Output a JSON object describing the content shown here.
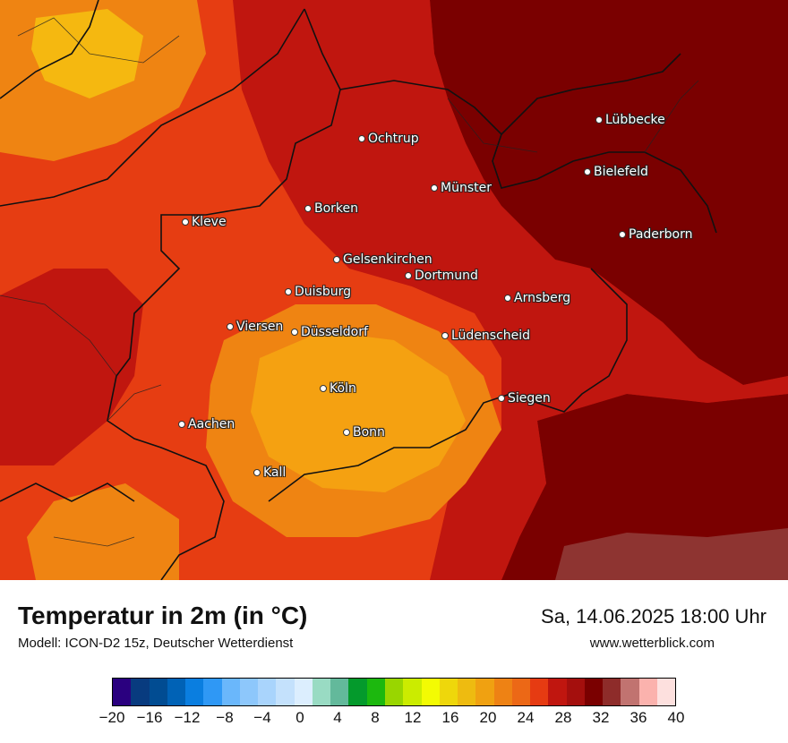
{
  "map": {
    "cities": [
      {
        "name": "Ochtrup"
      },
      {
        "name": "Lübbecke"
      },
      {
        "name": "Bielefeld"
      },
      {
        "name": "Münster"
      },
      {
        "name": "Borken"
      },
      {
        "name": "Kleve"
      },
      {
        "name": "Paderborn"
      },
      {
        "name": "Gelsenkirchen"
      },
      {
        "name": "Dortmund"
      },
      {
        "name": "Duisburg"
      },
      {
        "name": "Arnsberg"
      },
      {
        "name": "Viersen"
      },
      {
        "name": "Düsseldorf"
      },
      {
        "name": "Lüdenscheid"
      },
      {
        "name": "Köln"
      },
      {
        "name": "Siegen"
      },
      {
        "name": "Aachen"
      },
      {
        "name": "Bonn"
      },
      {
        "name": "Kall"
      }
    ]
  },
  "footer": {
    "title": "Temperatur in 2m (in °C)",
    "subtitle": "Modell: ICON-D2 15z, Deutscher Wetterdienst",
    "datetime": "Sa, 14.06.2025 18:00 Uhr",
    "website": "www.wetterblick.com"
  },
  "legend": {
    "ticks": [
      "−20",
      "−16",
      "−12",
      "−8",
      "−4",
      "0",
      "4",
      "8",
      "12",
      "16",
      "20",
      "24",
      "28",
      "32",
      "36",
      "40"
    ],
    "colors": [
      "#2a007f",
      "#083b7f",
      "#014c92",
      "#0062b6",
      "#0a7ee0",
      "#2f98f5",
      "#6ab7fb",
      "#8dc7fb",
      "#a9d4fc",
      "#c4e1fc",
      "#dceefe",
      "#99dbc3",
      "#63b99b",
      "#049a2c",
      "#1cb80e",
      "#99d600",
      "#cbec00",
      "#f3fb03",
      "#eed70b",
      "#eebb10",
      "#f0a111",
      "#ee8214",
      "#ec6816",
      "#e63b12",
      "#c0160f",
      "#a40f0d",
      "#7a0000",
      "#8e2c2a",
      "#c17370",
      "#fbb2ad",
      "#fde0de"
    ],
    "map_colors": {
      "yellow_orange": "#f5a111",
      "orange": "#ef8412",
      "orange_red": "#e63d12",
      "red": "#c0160f",
      "dark_red": "#b21410",
      "maroon": "#7a0000",
      "brown": "#8e3431"
    }
  }
}
